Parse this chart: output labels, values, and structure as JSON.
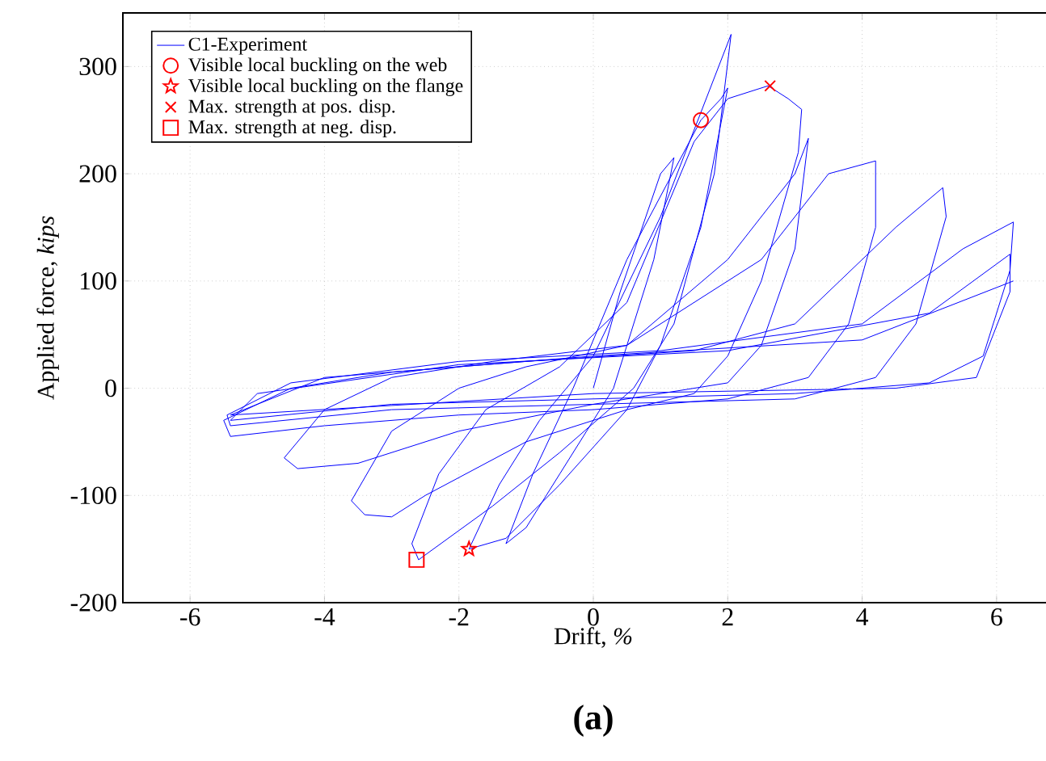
{
  "chart_data": {
    "type": "line",
    "xlabel": "Drift, *%*",
    "ylabel": "Applied force, *kips*",
    "annotations": [
      "(a)"
    ],
    "xlim": [
      -7,
      7
    ],
    "ylim": [
      -200,
      350
    ],
    "xticks": [
      -6,
      -4,
      -2,
      0,
      2,
      4,
      6
    ],
    "yticks": [
      -200,
      -100,
      0,
      100,
      200,
      300
    ],
    "grid": true,
    "legend": "top left",
    "series": [
      {
        "name": "C1-Experiment",
        "type": "line",
        "color": "#0000ff",
        "marker": "none",
        "line_style": "solid",
        "x": [
          0,
          0.4,
          1.0,
          1.2,
          0.9,
          0.3,
          -0.5,
          -1.0,
          -1.3,
          -0.9,
          -0.3,
          0.5,
          1.6,
          1.9,
          2.0,
          1.6,
          1.0,
          0.5,
          -0.5,
          -1.3,
          -1.85,
          -1.4,
          -0.8,
          0,
          1.0,
          2.05,
          1.8,
          1.2,
          0.6,
          -0.5,
          -1.5,
          -2.6,
          -2.7,
          -2.3,
          -1.6,
          -0.5,
          0.5,
          1.5,
          2.0,
          2.6,
          2.9,
          3.1,
          3.05,
          2.5,
          2.0,
          1.5,
          0.5,
          -1.0,
          -2.5,
          -3.0,
          -3.4,
          -3.6,
          -3.0,
          -2.0,
          -1.0,
          0.5,
          2.0,
          3.0,
          3.2,
          3.0,
          2.5,
          2.0,
          0,
          -2,
          -3.5,
          -4.4,
          -4.6,
          -4.0,
          -3.0,
          -1.5,
          0.5,
          2.5,
          3.5,
          4.2,
          4.2,
          3.8,
          3.2,
          2,
          0,
          -2,
          -4.0,
          -5.4,
          -5.5,
          -4.5,
          -3,
          -1,
          1.5,
          3,
          4.5,
          5.2,
          5.25,
          4.8,
          4.2,
          3,
          0,
          -3,
          -5.4,
          -5.45,
          -4.5,
          -2,
          1,
          4,
          5.5,
          6.25,
          6.2,
          5.8,
          5,
          3,
          0,
          -3,
          -5.4,
          -5,
          -2,
          2,
          5,
          6.2,
          6.2,
          5.7,
          4.5,
          0,
          -5.4,
          -4,
          0,
          4,
          6.25
        ],
        "values": [
          0,
          90,
          200,
          215,
          120,
          0,
          -80,
          -130,
          -145,
          -80,
          0,
          120,
          250,
          270,
          280,
          150,
          40,
          -20,
          -90,
          -140,
          -150,
          -90,
          -30,
          30,
          160,
          330,
          200,
          60,
          0,
          -60,
          -110,
          -160,
          -145,
          -80,
          -20,
          20,
          80,
          230,
          270,
          282,
          270,
          260,
          220,
          100,
          30,
          -5,
          -20,
          -50,
          -100,
          -120,
          -118,
          -105,
          -40,
          0,
          20,
          40,
          120,
          200,
          233,
          130,
          40,
          5,
          -15,
          -40,
          -70,
          -75,
          -65,
          -20,
          10,
          25,
          40,
          120,
          200,
          212,
          150,
          60,
          10,
          -10,
          -20,
          -25,
          -35,
          -45,
          -30,
          0,
          15,
          25,
          35,
          60,
          150,
          187,
          160,
          60,
          10,
          -10,
          -15,
          -20,
          -35,
          -25,
          5,
          25,
          35,
          60,
          130,
          155,
          110,
          30,
          5,
          -5,
          -10,
          -15,
          -30,
          -5,
          22,
          35,
          70,
          125,
          90,
          10,
          0,
          -5,
          -25,
          10,
          30,
          45,
          100
        ]
      },
      {
        "name": "Visible local buckling on the web",
        "type": "scatter",
        "color": "#ff0000",
        "marker": "circle",
        "x": [
          1.6
        ],
        "values": [
          250
        ]
      },
      {
        "name": "Visible local buckling on the flange",
        "type": "scatter",
        "color": "#ff0000",
        "marker": "star",
        "x": [
          -1.85
        ],
        "values": [
          -150
        ]
      },
      {
        "name": "Max. strength at pos. disp.",
        "type": "scatter",
        "color": "#ff0000",
        "marker": "cross",
        "x": [
          2.63
        ],
        "values": [
          282
        ]
      },
      {
        "name": "Max. strength at neg. disp.",
        "type": "scatter",
        "color": "#ff0000",
        "marker": "square",
        "x": [
          -2.63
        ],
        "values": [
          -160
        ]
      }
    ]
  }
}
